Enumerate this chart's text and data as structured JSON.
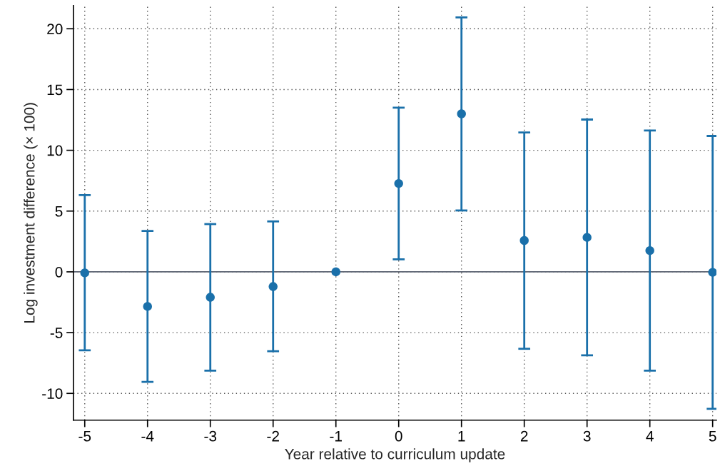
{
  "chart_data": {
    "type": "scatter",
    "xlabel": "Year relative to curriculum update",
    "ylabel": "Log investment difference (× 100)",
    "x": [
      -5,
      -4,
      -3,
      -2,
      -1,
      0,
      1,
      2,
      3,
      4,
      5
    ],
    "values": [
      -0.09,
      -2.85,
      -2.09,
      -1.21,
      0,
      7.27,
      13.0,
      2.58,
      2.83,
      1.75,
      -0.04
    ],
    "errors": [
      [
        -6.46,
        6.31
      ],
      [
        -9.05,
        3.37
      ],
      [
        -8.13,
        3.93
      ],
      [
        -6.53,
        4.15
      ],
      null,
      [
        1.03,
        13.51
      ],
      [
        5.05,
        20.94
      ],
      [
        -6.33,
        11.47
      ],
      [
        -6.87,
        12.53
      ],
      [
        -8.13,
        11.63
      ],
      [
        -11.27,
        11.18
      ]
    ],
    "color": "#1a70aa",
    "marker": "circle",
    "xlim": [
      -5.18,
      5.06
    ],
    "ylim": [
      -12.2,
      21.9
    ],
    "xticks": [
      {
        "value": -5,
        "label": "-5"
      },
      {
        "value": -4,
        "label": "-4"
      },
      {
        "value": -3,
        "label": "-3"
      },
      {
        "value": -2,
        "label": "-2"
      },
      {
        "value": -1,
        "label": "-1"
      },
      0,
      1,
      2,
      3,
      4,
      5
    ],
    "yticks": [
      {
        "value": -10,
        "label": "-10"
      },
      {
        "value": -5,
        "label": "-5"
      },
      0,
      5,
      10,
      15,
      20
    ],
    "ref_lines": [
      {
        "axis": "y",
        "value": 0,
        "color": "#5a6270"
      }
    ],
    "grid": true
  }
}
